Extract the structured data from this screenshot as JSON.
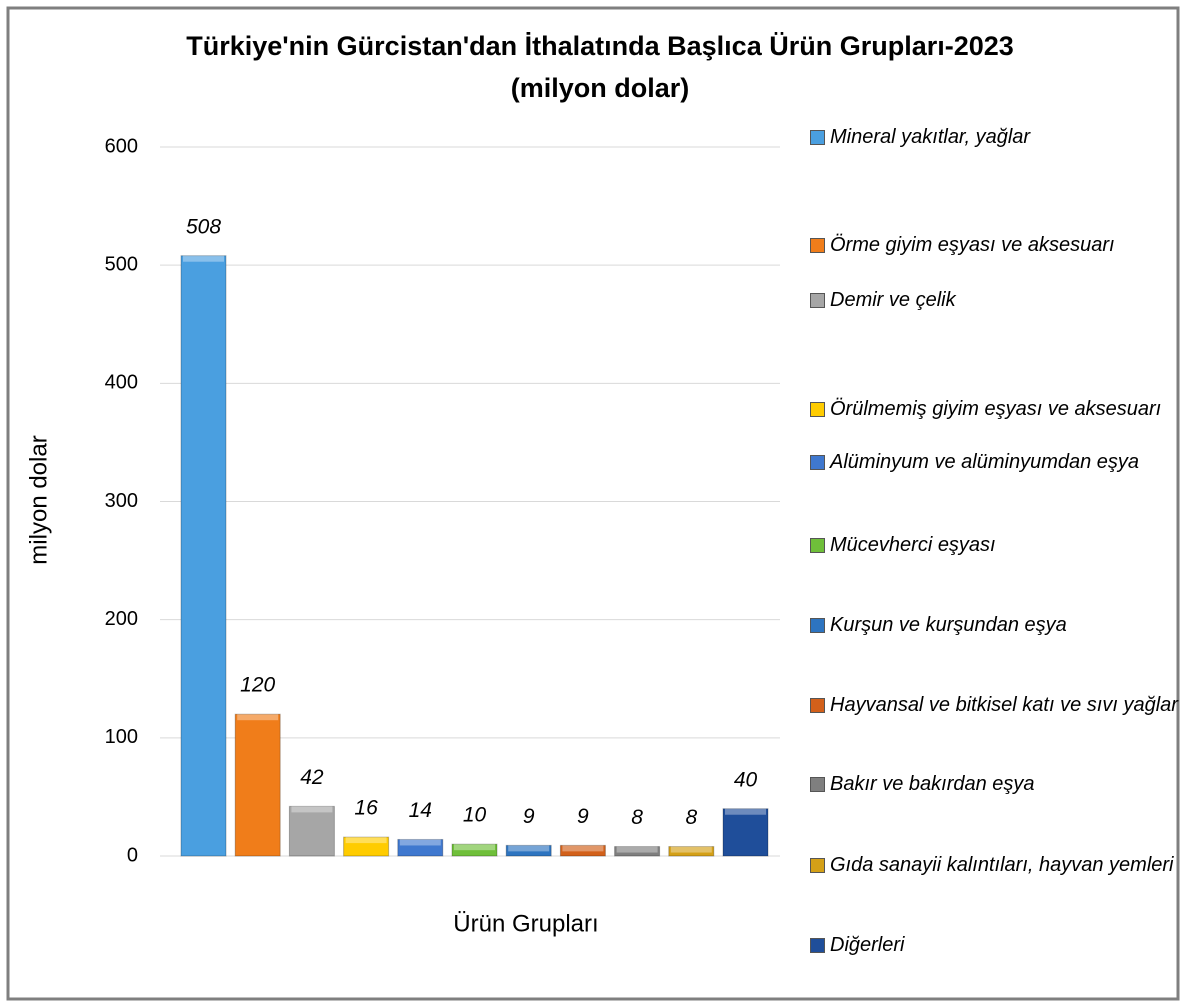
{
  "chart_data": {
    "type": "bar",
    "title": "Türkiye'nin Gürcistan'dan İthalatında Başlıca Ürün Grupları-2023",
    "subtitle": "(milyon dolar)",
    "x_label": "Ürün Grupları",
    "y_label": "milyon dolar",
    "categories": [
      null
    ],
    "series": [
      {
        "name": "Mineral yakıtlar, yağlar",
        "color": "#4a9fe0",
        "values": [
          508
        ]
      },
      {
        "name": "Örme giyim eşyası ve aksesuarı",
        "color": "#f07d1a",
        "values": [
          120
        ]
      },
      {
        "name": "Demir ve çelik",
        "color": "#a6a6a6",
        "values": [
          42
        ]
      },
      {
        "name": "Örülmemiş giyim eşyası ve aksesuarı",
        "color": "#ffcc00",
        "values": [
          16
        ]
      },
      {
        "name": "Alüminyum ve alüminyumdan eşya",
        "color": "#3f78cf",
        "values": [
          14
        ]
      },
      {
        "name": "Mücevherci eşyası",
        "color": "#6fbf3a",
        "values": [
          10
        ]
      },
      {
        "name": "Kurşun ve kurşundan eşya",
        "color": "#2d74c0",
        "values": [
          9
        ]
      },
      {
        "name": "Hayvansal ve bitkisel katı ve sıvı yağlar",
        "color": "#d2601a",
        "values": [
          9
        ]
      },
      {
        "name": "Bakır ve bakırdan eşya",
        "color": "#7f7f7f",
        "values": [
          8
        ]
      },
      {
        "name": "Gıda sanayii kalıntıları, hayvan yemleri",
        "color": "#d4a017",
        "values": [
          8
        ]
      },
      {
        "name": "Diğerleri",
        "color": "#1f4e9a",
        "values": [
          40
        ]
      }
    ],
    "ylim": [
      0,
      600
    ],
    "yticks": [
      0,
      100,
      200,
      300,
      400,
      500,
      600
    ],
    "grid": true,
    "legend": "right"
  }
}
